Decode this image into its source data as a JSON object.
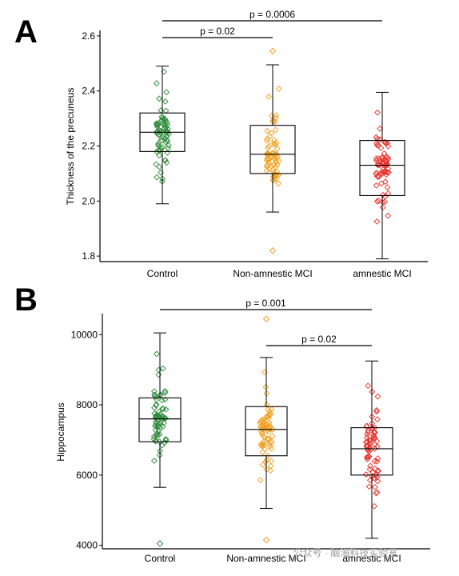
{
  "chart_data": [
    {
      "type": "box",
      "panel_label": "A",
      "ylabel": "Thickness of the precuneus",
      "ylim": [
        1.78,
        2.62
      ],
      "yticks": [
        "1.8",
        "2.0",
        "2.2",
        "2.4",
        "2.6"
      ],
      "categories": [
        "Control",
        "Non-amnestic MCI",
        "amnestic MCI"
      ],
      "colors": [
        "#2e8b3a",
        "#f0a020",
        "#e8312a"
      ],
      "boxes": [
        {
          "min": 1.99,
          "q1": 2.18,
          "median": 2.25,
          "q3": 2.32,
          "max": 2.49
        },
        {
          "min": 1.96,
          "q1": 2.1,
          "median": 2.17,
          "q3": 2.275,
          "max": 2.495
        },
        {
          "min": 1.79,
          "q1": 2.02,
          "median": 2.13,
          "q3": 2.22,
          "max": 2.395
        }
      ],
      "outliers": [
        [],
        [
          2.545,
          1.82
        ],
        []
      ],
      "comparisons": [
        {
          "from": 0,
          "to": 2,
          "label": "p = 0.0006"
        },
        {
          "from": 0,
          "to": 1,
          "label": "p = 0.02"
        }
      ]
    },
    {
      "type": "box",
      "panel_label": "B",
      "ylabel": "Hippocampus",
      "ylim": [
        3900,
        10600
      ],
      "yticks": [
        "4000",
        "6000",
        "8000",
        "10000"
      ],
      "categories": [
        "Control",
        "Non-amnestic MCI",
        "amnestic MCI"
      ],
      "colors": [
        "#2e8b3a",
        "#f0a020",
        "#e8312a"
      ],
      "boxes": [
        {
          "min": 5650,
          "q1": 6950,
          "median": 7600,
          "q3": 8200,
          "max": 10050
        },
        {
          "min": 5050,
          "q1": 6550,
          "median": 7300,
          "q3": 7950,
          "max": 9350
        },
        {
          "min": 4200,
          "q1": 6000,
          "median": 6750,
          "q3": 7350,
          "max": 9250
        }
      ],
      "outliers": [
        [
          4050
        ],
        [
          10450,
          4150
        ],
        []
      ],
      "comparisons": [
        {
          "from": 0,
          "to": 2,
          "label": "p = 0.001"
        },
        {
          "from": 1,
          "to": 2,
          "label": "p = 0.02"
        }
      ]
    }
  ],
  "watermark": "公众号 · 脑海科技实验室"
}
